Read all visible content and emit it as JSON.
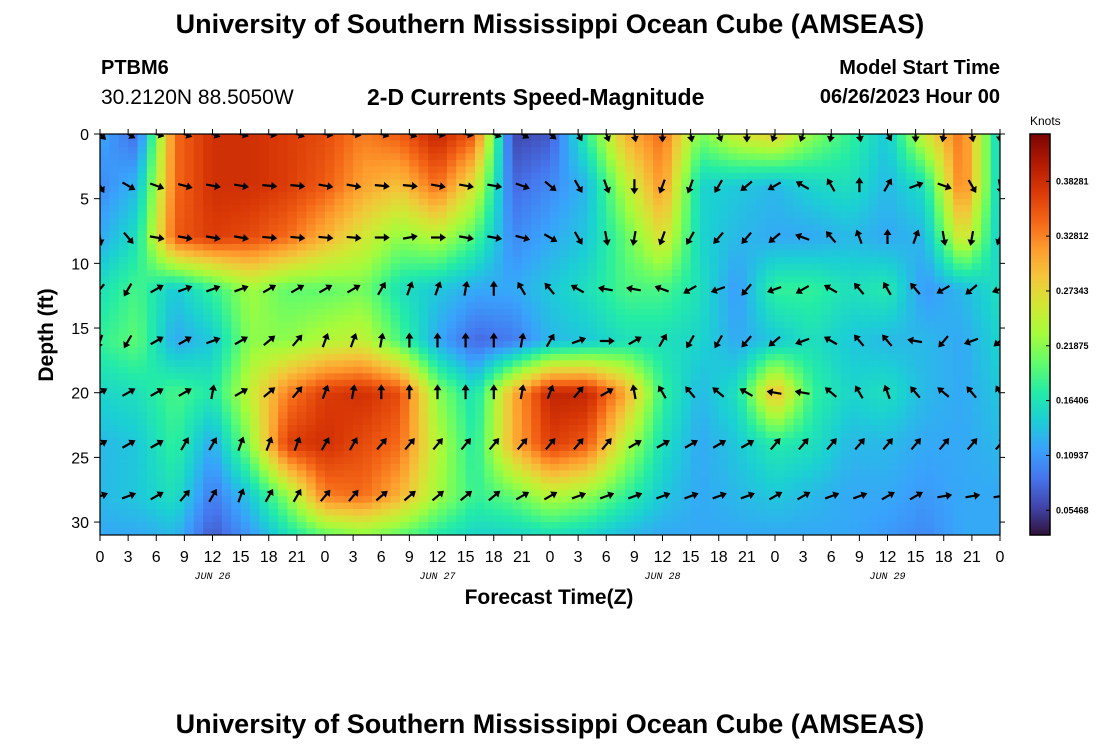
{
  "page": {
    "title_top": "University of Southern Mississippi Ocean Cube (AMSEAS)",
    "title_bottom": "University of Southern Mississippi Ocean Cube (AMSEAS)",
    "station": "PTBM6",
    "coords": "30.2120N  88.5050W",
    "plot_title": "2-D Currents Speed-Magnitude",
    "start_label": "Model Start Time",
    "start_value": "06/26/2023 Hour 00"
  },
  "chart_data": {
    "type": "heatmap",
    "title": "2-D Currents Speed-Magnitude",
    "xlabel": "Forecast Time(Z)",
    "ylabel": "Depth (ft)",
    "xlim": [
      0,
      96
    ],
    "ylim": [
      31,
      0
    ],
    "x_tick_labels": [
      "0",
      "3",
      "6",
      "9",
      "12",
      "15",
      "18",
      "21",
      "0",
      "3",
      "6",
      "9",
      "12",
      "15",
      "18",
      "21",
      "0",
      "3",
      "6",
      "9",
      "12",
      "15",
      "18",
      "21",
      "0",
      "3",
      "6",
      "9",
      "12",
      "15",
      "18",
      "21",
      "0"
    ],
    "day_labels": [
      {
        "label": "JUN 26",
        "hour": 12
      },
      {
        "label": "JUN 27",
        "hour": 36
      },
      {
        "label": "JUN 28",
        "hour": 60
      },
      {
        "label": "JUN 29",
        "hour": 84
      }
    ],
    "y_ticks": [
      0,
      5,
      10,
      15,
      20,
      25,
      30
    ],
    "colorbar": {
      "label": "Knots",
      "range": [
        0.03,
        0.43
      ],
      "ticks": [
        "0.05468",
        "0.10937",
        "0.16406",
        "0.21875",
        "0.27343",
        "0.32812",
        "0.38281"
      ],
      "colors": [
        "#30123b",
        "#4145ab",
        "#4675ed",
        "#39a2fc",
        "#1bcfd4",
        "#24eca6",
        "#61fc6c",
        "#a4fc3b",
        "#d1e834",
        "#f3c63a",
        "#fe9b2d",
        "#f36315",
        "#d93806",
        "#b11901",
        "#7a0403"
      ]
    },
    "grid_hours": [
      0,
      4,
      8,
      12,
      16,
      20,
      24,
      28,
      32,
      36,
      40,
      44,
      48,
      52,
      56,
      60,
      64,
      68,
      72,
      76,
      80,
      84,
      88,
      92,
      96
    ],
    "grid_depths": [
      0,
      4,
      8,
      12,
      16,
      20,
      24,
      28,
      31
    ],
    "speed_knots": [
      [
        0.12,
        0.08,
        0.34,
        0.38,
        0.38,
        0.37,
        0.36,
        0.33,
        0.35,
        0.39,
        0.35,
        0.06,
        0.07,
        0.18,
        0.3,
        0.34,
        0.21,
        0.26,
        0.28,
        0.22,
        0.18,
        0.14,
        0.26,
        0.34,
        0.14
      ],
      [
        0.1,
        0.13,
        0.34,
        0.38,
        0.38,
        0.37,
        0.35,
        0.31,
        0.29,
        0.34,
        0.26,
        0.08,
        0.1,
        0.13,
        0.24,
        0.32,
        0.15,
        0.14,
        0.13,
        0.15,
        0.16,
        0.13,
        0.16,
        0.34,
        0.14
      ],
      [
        0.12,
        0.16,
        0.35,
        0.37,
        0.36,
        0.34,
        0.3,
        0.26,
        0.22,
        0.24,
        0.19,
        0.1,
        0.12,
        0.14,
        0.2,
        0.27,
        0.15,
        0.13,
        0.12,
        0.12,
        0.13,
        0.12,
        0.13,
        0.27,
        0.14
      ],
      [
        0.16,
        0.19,
        0.14,
        0.18,
        0.23,
        0.2,
        0.2,
        0.21,
        0.16,
        0.14,
        0.12,
        0.12,
        0.14,
        0.16,
        0.19,
        0.19,
        0.16,
        0.11,
        0.18,
        0.18,
        0.16,
        0.17,
        0.11,
        0.13,
        0.16
      ],
      [
        0.18,
        0.2,
        0.12,
        0.14,
        0.22,
        0.22,
        0.24,
        0.25,
        0.19,
        0.12,
        0.08,
        0.09,
        0.13,
        0.14,
        0.16,
        0.16,
        0.15,
        0.12,
        0.14,
        0.16,
        0.14,
        0.13,
        0.13,
        0.12,
        0.15
      ],
      [
        0.15,
        0.16,
        0.19,
        0.17,
        0.25,
        0.33,
        0.37,
        0.38,
        0.36,
        0.22,
        0.16,
        0.3,
        0.39,
        0.39,
        0.31,
        0.18,
        0.13,
        0.16,
        0.3,
        0.18,
        0.15,
        0.16,
        0.13,
        0.12,
        0.14
      ],
      [
        0.13,
        0.14,
        0.18,
        0.12,
        0.22,
        0.37,
        0.38,
        0.36,
        0.34,
        0.24,
        0.17,
        0.3,
        0.37,
        0.35,
        0.24,
        0.16,
        0.12,
        0.14,
        0.17,
        0.16,
        0.13,
        0.13,
        0.12,
        0.12,
        0.13
      ],
      [
        0.13,
        0.14,
        0.16,
        0.09,
        0.14,
        0.22,
        0.33,
        0.34,
        0.3,
        0.23,
        0.18,
        0.2,
        0.24,
        0.22,
        0.18,
        0.14,
        0.12,
        0.13,
        0.14,
        0.13,
        0.12,
        0.12,
        0.11,
        0.12,
        0.12
      ],
      [
        0.12,
        0.12,
        0.13,
        0.07,
        0.11,
        0.16,
        0.2,
        0.22,
        0.2,
        0.17,
        0.15,
        0.15,
        0.16,
        0.15,
        0.13,
        0.12,
        0.12,
        0.12,
        0.12,
        0.12,
        0.12,
        0.11,
        0.1,
        0.12,
        0.12
      ]
    ],
    "arrow_depths": [
      0,
      4,
      8,
      12,
      16,
      20,
      24,
      28
    ],
    "arrow_hours": [
      0,
      3,
      6,
      9,
      12,
      15,
      18,
      21,
      24,
      27,
      30,
      33,
      36,
      39,
      42,
      45,
      48,
      51,
      54,
      57,
      60,
      63,
      66,
      69,
      72,
      75,
      78,
      81,
      84,
      87,
      90,
      93,
      96
    ],
    "arrow_directions_deg": [
      [
        135,
        120,
        105,
        110,
        110,
        105,
        100,
        110,
        100,
        100,
        105,
        110,
        100,
        100,
        110,
        120,
        130,
        150,
        160,
        170,
        180,
        170,
        160,
        180,
        200,
        200,
        190,
        170,
        150,
        180,
        190,
        170,
        180
      ],
      [
        150,
        120,
        110,
        105,
        100,
        100,
        95,
        95,
        100,
        100,
        95,
        95,
        100,
        100,
        100,
        110,
        130,
        150,
        160,
        180,
        200,
        200,
        210,
        230,
        240,
        300,
        330,
        0,
        30,
        70,
        110,
        150,
        170
      ],
      [
        170,
        140,
        100,
        100,
        100,
        100,
        95,
        95,
        95,
        95,
        90,
        80,
        90,
        100,
        100,
        105,
        120,
        150,
        170,
        190,
        200,
        210,
        220,
        220,
        230,
        290,
        320,
        340,
        0,
        20,
        170,
        190,
        200
      ],
      [
        220,
        210,
        60,
        70,
        70,
        70,
        60,
        60,
        60,
        60,
        30,
        20,
        20,
        10,
        0,
        330,
        320,
        300,
        280,
        280,
        290,
        240,
        250,
        220,
        250,
        240,
        300,
        320,
        330,
        320,
        240,
        230,
        250
      ],
      [
        200,
        210,
        60,
        60,
        70,
        60,
        50,
        40,
        20,
        20,
        10,
        0,
        0,
        0,
        0,
        10,
        30,
        70,
        90,
        60,
        30,
        210,
        210,
        220,
        230,
        250,
        300,
        320,
        320,
        280,
        220,
        250,
        230
      ],
      [
        60,
        60,
        60,
        60,
        10,
        60,
        50,
        40,
        20,
        10,
        0,
        0,
        0,
        0,
        0,
        10,
        20,
        40,
        60,
        350,
        330,
        320,
        310,
        300,
        280,
        280,
        310,
        330,
        340,
        320,
        310,
        320,
        330
      ],
      [
        60,
        60,
        60,
        30,
        30,
        20,
        20,
        20,
        30,
        30,
        40,
        40,
        40,
        40,
        40,
        40,
        40,
        40,
        40,
        60,
        60,
        60,
        60,
        60,
        40,
        40,
        40,
        40,
        40,
        40,
        40,
        40,
        40
      ],
      [
        70,
        70,
        60,
        40,
        30,
        20,
        30,
        30,
        40,
        40,
        50,
        50,
        50,
        50,
        50,
        60,
        60,
        70,
        70,
        70,
        70,
        70,
        70,
        70,
        60,
        60,
        70,
        70,
        60,
        60,
        80,
        80,
        80
      ]
    ]
  }
}
